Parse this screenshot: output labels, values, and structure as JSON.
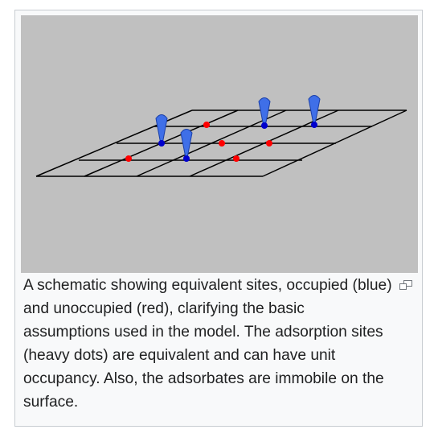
{
  "figure": {
    "background": "#c0c0c0",
    "grid_color": "#000000",
    "occupied_color": "#0000cc",
    "unoccupied_color": "#ff0000",
    "adsorbate_color": "#3f6fe8"
  },
  "caption": {
    "text": "A schematic showing equivalent sites, occupied (blue) and unoccupied (red), clarifying the basic assumptions used in the model. The adsorption sites (heavy dots) are equivalent and can have unit occupancy. Also, the adsorbates are immobile on the surface."
  },
  "icons": {
    "enlarge": "magnify-clip-icon"
  }
}
